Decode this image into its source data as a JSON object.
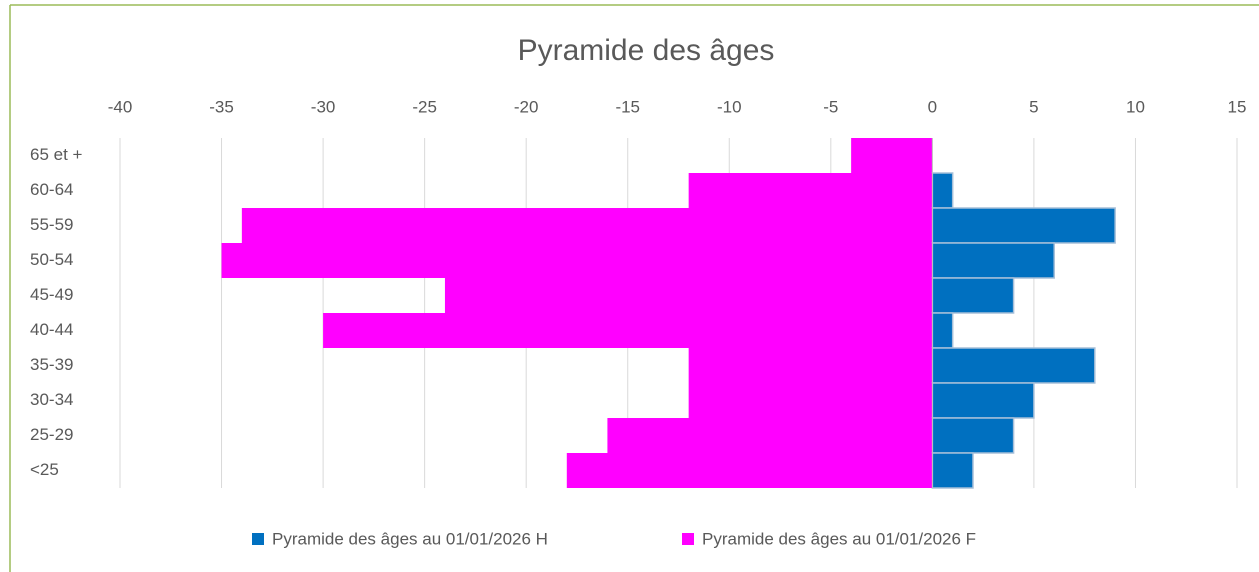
{
  "chart_data": {
    "type": "bar",
    "orientation": "horizontal",
    "title": "Pyramide des âges",
    "categories": [
      "65 et +",
      "60-64",
      "55-59",
      "50-54",
      "45-49",
      "40-44",
      "35-39",
      "30-34",
      "25-29",
      "<25"
    ],
    "series": [
      {
        "name": "Pyramide des âges au 01/01/2026 H",
        "color": "#0070c0",
        "values": [
          0,
          1,
          9,
          6,
          4,
          1,
          8,
          5,
          4,
          2
        ]
      },
      {
        "name": "Pyramide des âges au 01/01/2026 F",
        "color": "#ff00ff",
        "values": [
          -4,
          -12,
          -34,
          -35,
          -24,
          -30,
          -12,
          -12,
          -16,
          -18
        ]
      }
    ],
    "xlim": [
      -40,
      15
    ],
    "xticks": [
      -40,
      -35,
      -30,
      -25,
      -20,
      -15,
      -10,
      -5,
      0,
      5,
      10,
      15
    ],
    "grid": true,
    "legend": "bottom"
  }
}
